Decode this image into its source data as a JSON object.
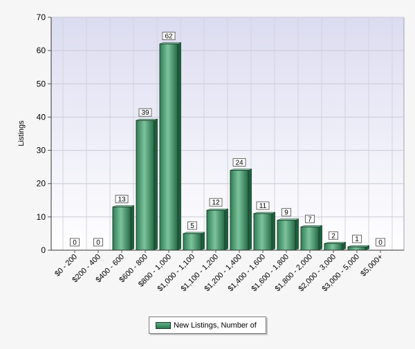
{
  "chart_data": {
    "type": "bar",
    "title": "",
    "xlabel": "",
    "ylabel": "Listings",
    "ylim": [
      0,
      70
    ],
    "yticks": [
      "0",
      "10",
      "20",
      "30",
      "40",
      "50",
      "60",
      "70"
    ],
    "categories": [
      "$0 - 200",
      "$200 - 400",
      "$400 - 600",
      "$600 - 800",
      "$800 - 1,000",
      "$1,000 - 1,100",
      "$1,100 - 1,200",
      "$1,200 - 1,400",
      "$1,400 - 1,600",
      "$1,600 - 1,800",
      "$1,800 - 2,000",
      "$2,000 - 3,000",
      "$3,000 - 5,000",
      "$5,000+"
    ],
    "series": [
      {
        "name": "New Listings, Number of",
        "values": [
          0,
          0,
          13,
          39,
          62,
          5,
          12,
          24,
          11,
          9,
          7,
          2,
          1,
          0
        ]
      }
    ],
    "data_labels": [
      "0",
      "0",
      "13",
      "39",
      "62",
      "5",
      "12",
      "24",
      "11",
      "9",
      "7",
      "2",
      "1",
      "0"
    ],
    "grid": true,
    "legend_position": "bottom-center",
    "colors": {
      "bar_light": "#6ab88e",
      "bar_dark": "#27704b",
      "bar_outline": "#1d3b2a",
      "plot_top": "#ddddf2",
      "plot_bottom": "#ffffff",
      "grid": "#c8c8d6"
    }
  },
  "legend": {
    "label": "New Listings, Number of"
  }
}
